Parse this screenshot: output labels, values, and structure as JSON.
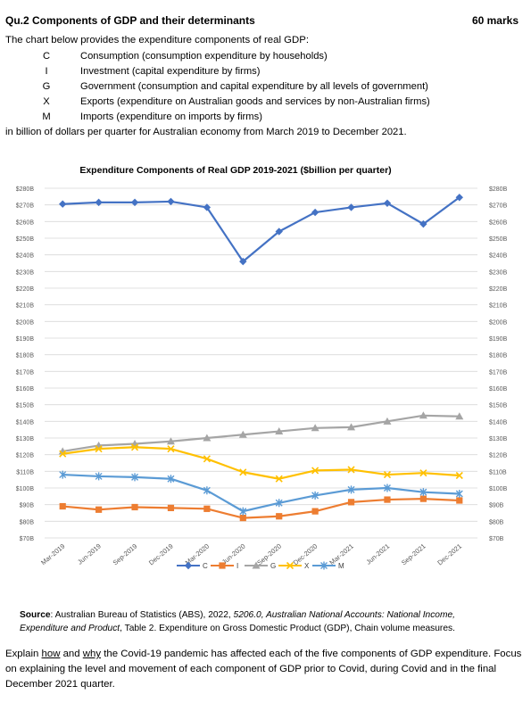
{
  "header": {
    "title": "Qu.2 Components of GDP and their determinants",
    "marks": "60 marks"
  },
  "intro": "The chart below provides the expenditure components of real GDP:",
  "components": [
    {
      "letter": "C",
      "desc": "Consumption (consumption expenditure by households)"
    },
    {
      "letter": "I",
      "desc": "Investment (capital expenditure by firms)"
    },
    {
      "letter": "G",
      "desc": "Government (consumption and capital expenditure by all levels of government)"
    },
    {
      "letter": "X",
      "desc": "Exports (expenditure on Australian goods and services by non-Australian firms)"
    },
    {
      "letter": "M",
      "desc": "Imports (expenditure on imports by firms)"
    }
  ],
  "basis": "in billion of dollars per quarter for Australian economy from March 2019 to December 2021.",
  "chart_data": {
    "type": "line",
    "title": "Expenditure Components of Real GDP  2019-2021 ($billion per quarter)",
    "categories": [
      "Mar-2019",
      "Jun-2019",
      "Sep-2019",
      "Dec-2019",
      "Mar-2020",
      "Jun-2020",
      "Sep-2020",
      "Dec-2020",
      "Mar-2021",
      "Jun-2021",
      "Sep-2021",
      "Dec-2021"
    ],
    "ylim": [
      70,
      280
    ],
    "yticks": [
      "$70B",
      "$80B",
      "$90B",
      "$100B",
      "$110B",
      "$120B",
      "$130B",
      "$140B",
      "$150B",
      "$160B",
      "$170B",
      "$180B",
      "$190B",
      "$200B",
      "$210B",
      "$220B",
      "$230B",
      "$240B",
      "$250B",
      "$260B",
      "$270B",
      "$280B"
    ],
    "grid": true,
    "legend_position": "bottom",
    "series": [
      {
        "name": "C",
        "color": "#4472C4",
        "marker": "diamond",
        "values": [
          270.5,
          271.5,
          271.5,
          272,
          268.5,
          236,
          254,
          265.5,
          268.5,
          271,
          258.5,
          274.5
        ]
      },
      {
        "name": "I",
        "color": "#ED7D31",
        "marker": "square",
        "values": [
          89,
          87,
          88.5,
          88,
          87.5,
          82,
          83,
          86,
          91.5,
          93,
          93.5,
          92.5
        ]
      },
      {
        "name": "G",
        "color": "#A5A5A5",
        "marker": "triangle",
        "values": [
          122,
          125.5,
          126.5,
          128,
          130,
          132,
          134,
          136,
          136.5,
          140,
          143.5,
          143
        ]
      },
      {
        "name": "X",
        "color": "#FFC000",
        "marker": "x",
        "values": [
          120.5,
          123.5,
          124.5,
          123.5,
          117.5,
          109.5,
          105.5,
          110.5,
          111,
          108,
          109,
          107.5
        ]
      },
      {
        "name": "M",
        "color": "#5B9BD5",
        "marker": "star",
        "values": [
          108,
          107,
          106.5,
          105.5,
          98.5,
          86,
          91,
          95.5,
          99,
          100,
          97.5,
          96.5
        ]
      }
    ]
  },
  "source": {
    "label": "Source",
    "text1": ": Australian Bureau of Statistics (ABS), 2022, ",
    "italic": "5206.0, Australian National Accounts: National Income, Expenditure and Product",
    "text2": ", Table 2. Expenditure on Gross Domestic Product (GDP), Chain volume measures."
  },
  "question": {
    "p1": "Explain ",
    "how": "how",
    "p2": " and ",
    "why": "why",
    "p3": " the Covid-19 pandemic has affected each of the five components of GDP expenditure. Focus on explaining the level and movement of each component of GDP prior to Covid, during Covid and in the final December 2021 quarter."
  }
}
